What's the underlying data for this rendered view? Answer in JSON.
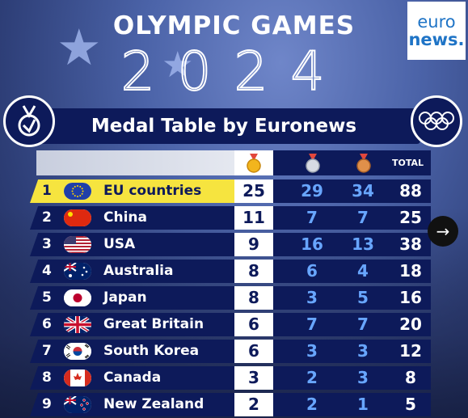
{
  "header": {
    "title": "OLYMPIC GAMES",
    "year": "2024",
    "table_title": "Medal Table by Euronews"
  },
  "logo": {
    "line1": "euro",
    "line2": "news."
  },
  "columns": {
    "total": "TOTAL"
  },
  "icons": {
    "gold": "gold-medal-icon",
    "silver": "silver-medal-icon",
    "bronze": "bronze-medal-icon",
    "medal_badge": "medal-icon",
    "olympic_rings": "olympic-rings-icon",
    "next": "arrow-right-icon"
  },
  "colors": {
    "navy": "#0d1a5a",
    "highlight": "#f6e43f",
    "number_blue": "#68a6ff"
  },
  "rows": [
    {
      "rank": "1",
      "country": "EU countries",
      "gold": "25",
      "silver": "29",
      "bronze": "34",
      "total": "88"
    },
    {
      "rank": "2",
      "country": "China",
      "gold": "11",
      "silver": "7",
      "bronze": "7",
      "total": "25"
    },
    {
      "rank": "3",
      "country": "USA",
      "gold": "9",
      "silver": "16",
      "bronze": "13",
      "total": "38"
    },
    {
      "rank": "4",
      "country": "Australia",
      "gold": "8",
      "silver": "6",
      "bronze": "4",
      "total": "18"
    },
    {
      "rank": "5",
      "country": "Japan",
      "gold": "8",
      "silver": "3",
      "bronze": "5",
      "total": "16"
    },
    {
      "rank": "6",
      "country": "Great Britain",
      "gold": "6",
      "silver": "7",
      "bronze": "7",
      "total": "20"
    },
    {
      "rank": "7",
      "country": "South Korea",
      "gold": "6",
      "silver": "3",
      "bronze": "3",
      "total": "12"
    },
    {
      "rank": "8",
      "country": "Canada",
      "gold": "3",
      "silver": "2",
      "bronze": "3",
      "total": "8"
    },
    {
      "rank": "9",
      "country": "New Zealand",
      "gold": "2",
      "silver": "2",
      "bronze": "1",
      "total": "5"
    }
  ]
}
